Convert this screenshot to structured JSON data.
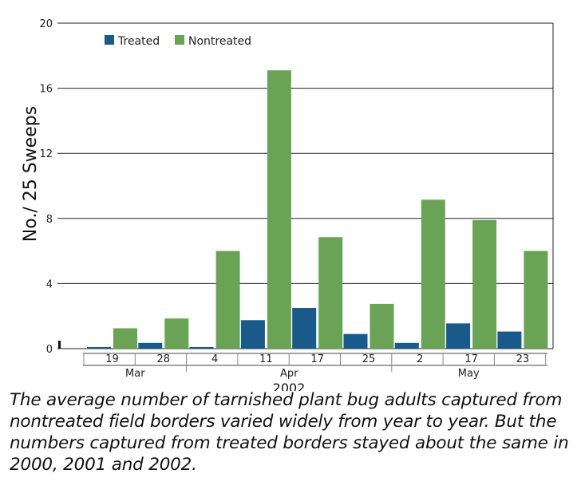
{
  "chart_data": {
    "type": "bar",
    "ylabel": "No./ 25 Sweeps",
    "xlabel": "2002",
    "ylim": [
      0,
      20
    ],
    "yticks": [
      "0",
      "4",
      "8",
      "12",
      "16",
      "20"
    ],
    "grid": true,
    "legend_position": "top-left",
    "categories": [
      "19",
      "28",
      "4",
      "11",
      "17",
      "25",
      "2",
      "17",
      "23"
    ],
    "month_groups": [
      {
        "label": "Mar",
        "count": 2
      },
      {
        "label": "Apr",
        "count": 4
      },
      {
        "label": "May",
        "count": 3
      }
    ],
    "series": [
      {
        "name": "Treated",
        "color": "#1a5a8a",
        "values": [
          0.1,
          0.35,
          0.1,
          1.75,
          2.5,
          0.9,
          0.35,
          1.55,
          1.05
        ]
      },
      {
        "name": "Nontreated",
        "color": "#6aa356",
        "values": [
          1.25,
          1.85,
          6.0,
          17.1,
          6.85,
          2.75,
          9.15,
          7.9,
          6.0
        ]
      }
    ]
  },
  "caption": "The average number of tarnished plant bug adults captured from nontreated field borders varied widely from year to year. But the numbers captured from treated borders stayed about the same in 2000, 2001 and 2002."
}
